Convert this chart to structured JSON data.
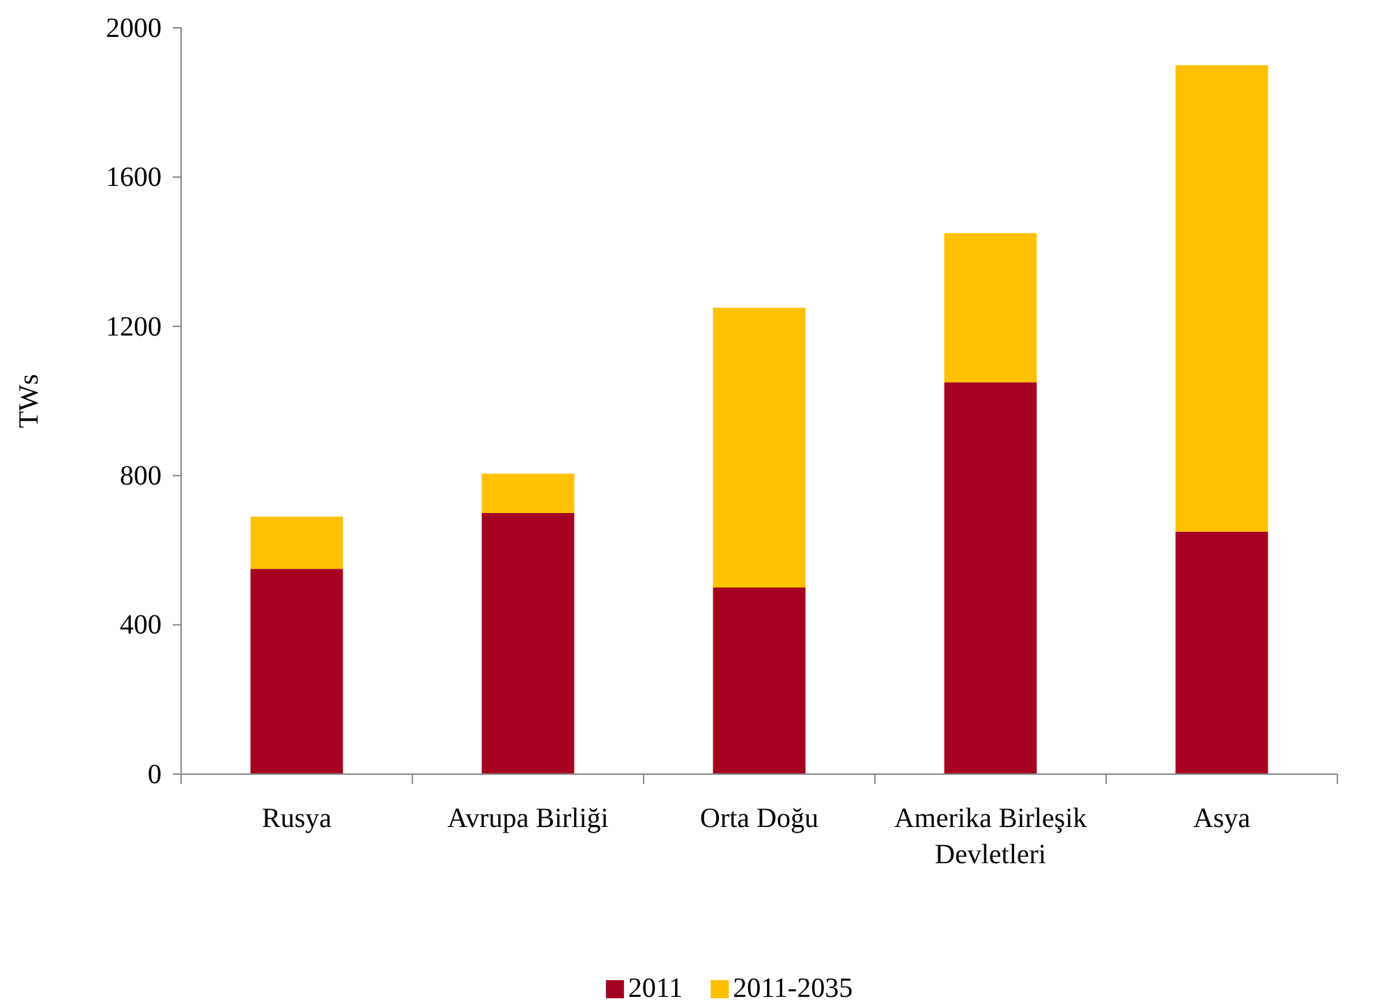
{
  "chart_data": {
    "type": "bar",
    "ylabel": "TWs",
    "categories": [
      "Rusya",
      "Avrupa Birliği",
      "Orta Doğu",
      "Amerika Birleşik Devletleri",
      "Asya"
    ],
    "series": [
      {
        "name": "2011",
        "color": "#a50021",
        "values": [
          550,
          700,
          500,
          1050,
          650
        ]
      },
      {
        "name": "2011-2035",
        "color": "#ffc000",
        "values": [
          140,
          105,
          750,
          400,
          1250
        ]
      }
    ],
    "stacked": true,
    "ylim": [
      0,
      2000
    ],
    "yticks": [
      0,
      400,
      800,
      1200,
      1600,
      2000
    ],
    "legend": "bottom"
  }
}
